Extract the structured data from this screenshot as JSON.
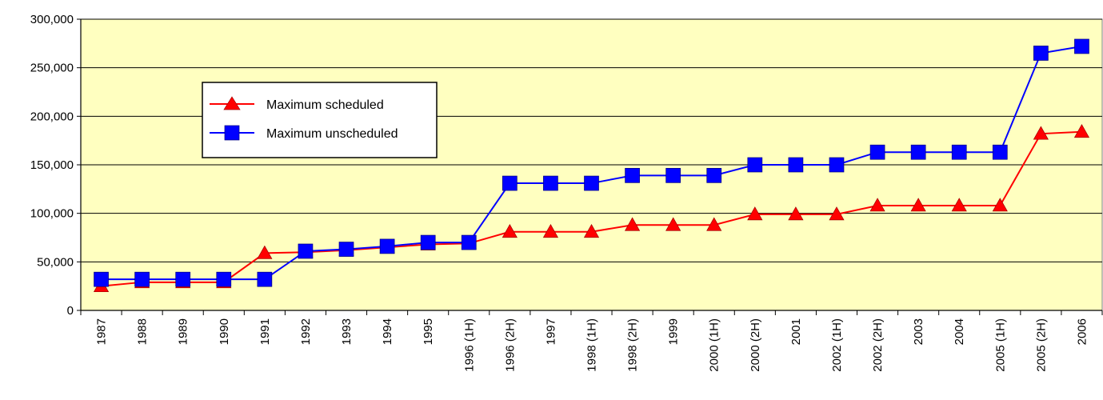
{
  "chart_data": {
    "type": "line",
    "title": "",
    "xlabel": "",
    "ylabel": "",
    "categories": [
      "1987",
      "1988",
      "1989",
      "1990",
      "1991",
      "1992",
      "1993",
      "1994",
      "1995",
      "1996 (1H)",
      "1996 (2H)",
      "1997",
      "1998 (1H)",
      "1998 (2H)",
      "1999",
      "2000 (1H)",
      "2000 (2H)",
      "2001",
      "2002 (1H)",
      "2002 (2H)",
      "2003",
      "2004",
      "2005 (1H)",
      "2005 (2H)",
      "2006"
    ],
    "ylim": [
      0,
      300000
    ],
    "yticks": [
      0,
      50000,
      100000,
      150000,
      200000,
      250000,
      300000
    ],
    "ytick_labels": [
      "0",
      "50,000",
      "100,000",
      "150,000",
      "200,000",
      "250,000",
      "300,000"
    ],
    "grid": "horizontal",
    "legend_placement": "upper-left",
    "plot_background": "#ffffc0",
    "series": [
      {
        "name": "Maximum scheduled",
        "color": "#ff0000",
        "marker": "triangle",
        "values": [
          25000,
          29000,
          29000,
          29000,
          59000,
          60000,
          62000,
          65000,
          68000,
          69000,
          81000,
          81000,
          81000,
          88000,
          88000,
          88000,
          99000,
          99000,
          99000,
          108000,
          108000,
          108000,
          108000,
          182000,
          184000
        ]
      },
      {
        "name": "Maximum unscheduled",
        "color": "#0000ff",
        "marker": "square",
        "values": [
          32000,
          32000,
          32000,
          32000,
          32000,
          61000,
          63000,
          66000,
          70000,
          70000,
          131000,
          131000,
          131000,
          139000,
          139000,
          139000,
          150000,
          150000,
          150000,
          163000,
          163000,
          163000,
          163000,
          265000,
          272000
        ]
      }
    ]
  }
}
